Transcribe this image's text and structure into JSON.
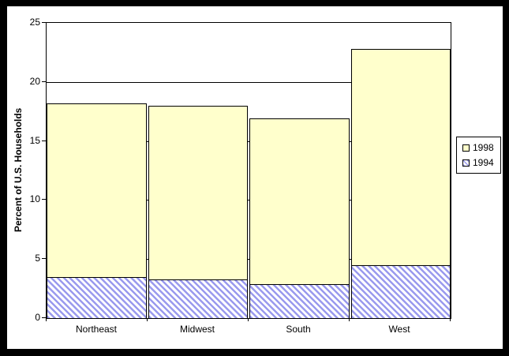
{
  "colors": {
    "frame": "#000000",
    "canvas_bg": "#FFFFFF",
    "line": "#000000",
    "series_1998_fill": "#FFFFCC",
    "series_1994_stripe": "#9A9AEE"
  },
  "chart_data": {
    "type": "bar",
    "stacked": true,
    "stack_order_bottom_to_top": [
      "1994",
      "1998"
    ],
    "categories": [
      "Northeast",
      "Midwest",
      "South",
      "West"
    ],
    "series": [
      {
        "name": "1998",
        "values": [
          14.8,
          14.8,
          14.1,
          18.4
        ],
        "color": "#FFFFCC",
        "pattern": "solid"
      },
      {
        "name": "1994",
        "values": [
          3.4,
          3.2,
          2.8,
          4.4
        ],
        "color": "#9A9AEE",
        "pattern": "diagonal-stripe"
      }
    ],
    "stack_totals": [
      18.2,
      18.0,
      16.9,
      22.8
    ],
    "title": "",
    "xlabel": "",
    "ylabel": "Percent of U.S. Households",
    "ylim": [
      0,
      25
    ],
    "yticks": [
      0,
      5,
      10,
      15,
      20,
      25
    ],
    "grid": true,
    "legend_position": "right"
  }
}
